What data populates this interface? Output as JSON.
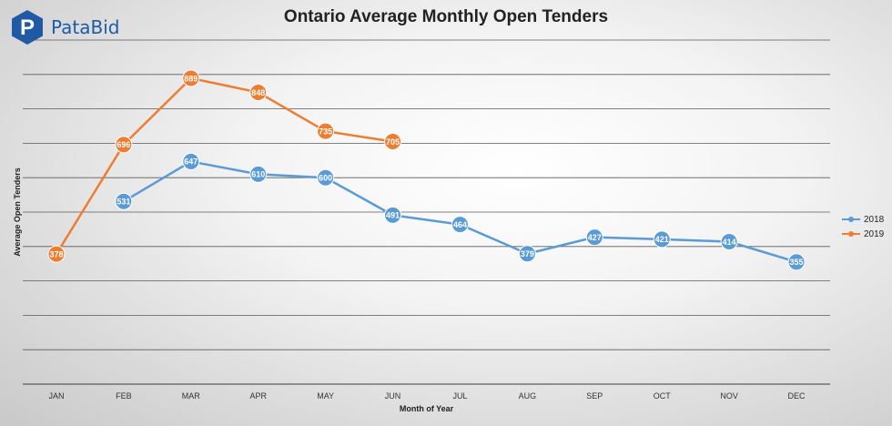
{
  "brand": {
    "name": "PataBid",
    "logo_letter": "P",
    "logo_color": "#1f5aa6"
  },
  "chart_data": {
    "type": "line",
    "title": "Ontario Average Monthly Open Tenders",
    "xlabel": "Month of Year",
    "ylabel": "Average Open Tenders",
    "categories": [
      "JAN",
      "FEB",
      "MAR",
      "APR",
      "MAY",
      "JUN",
      "JUL",
      "AUG",
      "SEP",
      "OCT",
      "NOV",
      "DEC"
    ],
    "ylim": [
      0,
      1000
    ],
    "grid": true,
    "legend_position": "right",
    "series": [
      {
        "name": "2018",
        "color": "#5b9bd5",
        "values": [
          null,
          531,
          647,
          610,
          600,
          491,
          464,
          379,
          427,
          421,
          414,
          355
        ]
      },
      {
        "name": "2019",
        "color": "#ed7d31",
        "values": [
          378,
          696,
          889,
          848,
          735,
          705,
          null,
          null,
          null,
          null,
          null,
          null
        ]
      }
    ]
  }
}
